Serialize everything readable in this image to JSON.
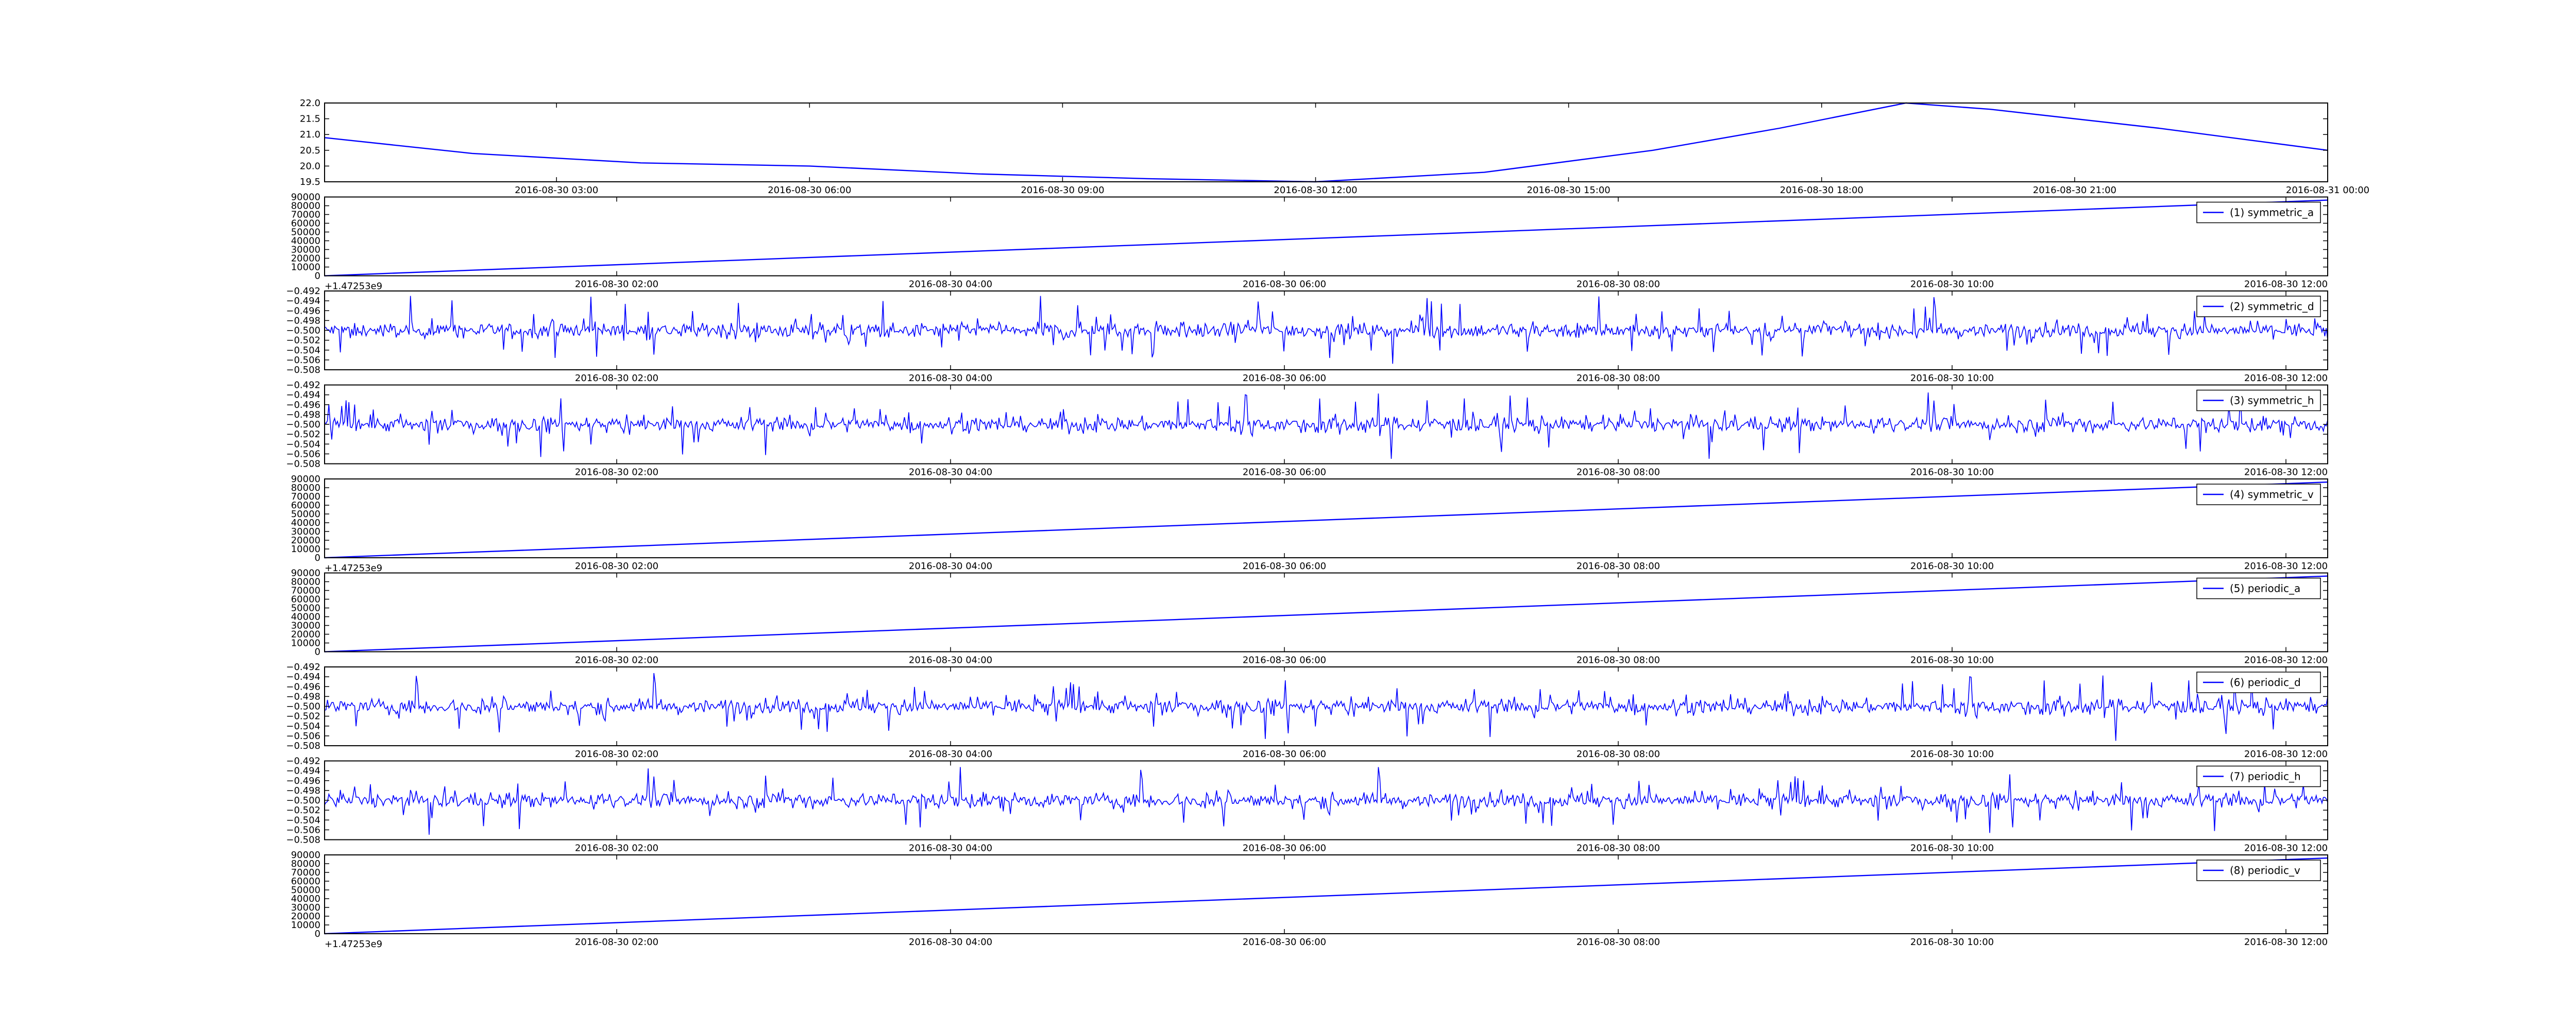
{
  "line_color": "#0000ff",
  "chart_data": [
    {
      "type": "line",
      "title": "",
      "xlabel": "",
      "ylabel": "",
      "legend": null,
      "grid": false,
      "x_ticks": [
        "2016-08-30 03:00",
        "2016-08-30 06:00",
        "2016-08-30 09:00",
        "2016-08-30 12:00",
        "2016-08-30 15:00",
        "2016-08-30 18:00",
        "2016-08-30 21:00",
        "2016-08-31 00:00"
      ],
      "xlim": [
        "2016-08-30 00:15",
        "2016-08-31 00:00"
      ],
      "y_ticks": [
        "19.5",
        "20.0",
        "20.5",
        "21.0",
        "21.5",
        "22.0"
      ],
      "ylim": [
        19.5,
        22.0
      ],
      "offset_text": "",
      "series": [
        {
          "x": [
            "2016-08-30 00:15",
            "2016-08-30 02:00",
            "2016-08-30 04:00",
            "2016-08-30 06:00",
            "2016-08-30 08:00",
            "2016-08-30 10:00",
            "2016-08-30 12:00",
            "2016-08-30 14:00",
            "2016-08-30 16:00",
            "2016-08-30 17:30",
            "2016-08-30 19:00",
            "2016-08-30 20:00",
            "2016-08-30 22:00",
            "2016-08-31 00:00"
          ],
          "values": [
            20.9,
            20.4,
            20.1,
            20.0,
            19.75,
            19.6,
            19.5,
            19.8,
            20.5,
            21.2,
            22.0,
            21.8,
            21.2,
            20.5
          ]
        }
      ]
    },
    {
      "type": "line",
      "x_ticks": [
        "2016-08-30 02:00",
        "2016-08-30 04:00",
        "2016-08-30 06:00",
        "2016-08-30 08:00",
        "2016-08-30 10:00",
        "2016-08-30 12:00"
      ],
      "xlim": [
        "2016-08-30 00:15",
        "2016-08-30 12:15"
      ],
      "y_ticks": [
        "0",
        "10000",
        "20000",
        "30000",
        "40000",
        "50000",
        "60000",
        "70000",
        "80000",
        "90000"
      ],
      "ylim": [
        0,
        90000
      ],
      "offset_text": "+1.47253e9",
      "legend": "(1) symmetric_a",
      "series": [
        {
          "name": "(1) symmetric_a",
          "x": [
            "2016-08-30 00:15",
            "2016-08-30 12:15"
          ],
          "values": [
            0,
            86400
          ]
        }
      ]
    },
    {
      "type": "line",
      "x_ticks": [
        "2016-08-30 02:00",
        "2016-08-30 04:00",
        "2016-08-30 06:00",
        "2016-08-30 08:00",
        "2016-08-30 10:00",
        "2016-08-30 12:00"
      ],
      "xlim": [
        "2016-08-30 00:15",
        "2016-08-30 12:15"
      ],
      "y_ticks": [
        "−0.508",
        "−0.506",
        "−0.504",
        "−0.502",
        "−0.500",
        "−0.498",
        "−0.496",
        "−0.494",
        "−0.492"
      ],
      "ylim": [
        -0.508,
        -0.492
      ],
      "offset_text": "",
      "legend": "(2) symmetric_d",
      "series": [
        {
          "name": "(2) symmetric_d",
          "mean": -0.5,
          "amplitude": 0.007,
          "samples": 1400
        }
      ]
    },
    {
      "type": "line",
      "x_ticks": [
        "2016-08-30 02:00",
        "2016-08-30 04:00",
        "2016-08-30 06:00",
        "2016-08-30 08:00",
        "2016-08-30 10:00",
        "2016-08-30 12:00"
      ],
      "xlim": [
        "2016-08-30 00:15",
        "2016-08-30 12:15"
      ],
      "y_ticks": [
        "−0.508",
        "−0.506",
        "−0.504",
        "−0.502",
        "−0.500",
        "−0.498",
        "−0.496",
        "−0.494",
        "−0.492"
      ],
      "ylim": [
        -0.508,
        -0.492
      ],
      "offset_text": "",
      "legend": "(3) symmetric_h",
      "series": [
        {
          "name": "(3) symmetric_h",
          "mean": -0.5,
          "amplitude": 0.007,
          "samples": 1400
        }
      ]
    },
    {
      "type": "line",
      "x_ticks": [
        "2016-08-30 02:00",
        "2016-08-30 04:00",
        "2016-08-30 06:00",
        "2016-08-30 08:00",
        "2016-08-30 10:00",
        "2016-08-30 12:00"
      ],
      "xlim": [
        "2016-08-30 00:15",
        "2016-08-30 12:15"
      ],
      "y_ticks": [
        "0",
        "10000",
        "20000",
        "30000",
        "40000",
        "50000",
        "60000",
        "70000",
        "80000",
        "90000"
      ],
      "ylim": [
        0,
        90000
      ],
      "offset_text": "+1.47253e9",
      "legend": "(4) symmetric_v",
      "series": [
        {
          "name": "(4) symmetric_v",
          "x": [
            "2016-08-30 00:15",
            "2016-08-30 12:15"
          ],
          "values": [
            0,
            86400
          ]
        }
      ]
    },
    {
      "type": "line",
      "x_ticks": [
        "2016-08-30 02:00",
        "2016-08-30 04:00",
        "2016-08-30 06:00",
        "2016-08-30 08:00",
        "2016-08-30 10:00",
        "2016-08-30 12:00"
      ],
      "xlim": [
        "2016-08-30 00:15",
        "2016-08-30 12:15"
      ],
      "y_ticks": [
        "0",
        "10000",
        "20000",
        "30000",
        "40000",
        "50000",
        "60000",
        "70000",
        "80000",
        "90000"
      ],
      "ylim": [
        0,
        90000
      ],
      "offset_text": "",
      "legend": "(5) periodic_a",
      "series": [
        {
          "name": "(5) periodic_a",
          "x": [
            "2016-08-30 00:15",
            "2016-08-30 12:15"
          ],
          "values": [
            0,
            86400
          ]
        }
      ]
    },
    {
      "type": "line",
      "x_ticks": [
        "2016-08-30 02:00",
        "2016-08-30 04:00",
        "2016-08-30 06:00",
        "2016-08-30 08:00",
        "2016-08-30 10:00",
        "2016-08-30 12:00"
      ],
      "xlim": [
        "2016-08-30 00:15",
        "2016-08-30 12:15"
      ],
      "y_ticks": [
        "−0.508",
        "−0.506",
        "−0.504",
        "−0.502",
        "−0.500",
        "−0.498",
        "−0.496",
        "−0.494",
        "−0.492"
      ],
      "ylim": [
        -0.508,
        -0.492
      ],
      "offset_text": "",
      "legend": "(6) periodic_d",
      "series": [
        {
          "name": "(6) periodic_d",
          "mean": -0.5,
          "amplitude": 0.007,
          "samples": 1400
        }
      ]
    },
    {
      "type": "line",
      "x_ticks": [
        "2016-08-30 02:00",
        "2016-08-30 04:00",
        "2016-08-30 06:00",
        "2016-08-30 08:00",
        "2016-08-30 10:00",
        "2016-08-30 12:00"
      ],
      "xlim": [
        "2016-08-30 00:15",
        "2016-08-30 12:15"
      ],
      "y_ticks": [
        "−0.508",
        "−0.506",
        "−0.504",
        "−0.502",
        "−0.500",
        "−0.498",
        "−0.496",
        "−0.494",
        "−0.492"
      ],
      "ylim": [
        -0.508,
        -0.492
      ],
      "offset_text": "",
      "legend": "(7) periodic_h",
      "series": [
        {
          "name": "(7) periodic_h",
          "mean": -0.5,
          "amplitude": 0.007,
          "samples": 1400
        }
      ]
    },
    {
      "type": "line",
      "x_ticks": [
        "2016-08-30 02:00",
        "2016-08-30 04:00",
        "2016-08-30 06:00",
        "2016-08-30 08:00",
        "2016-08-30 10:00",
        "2016-08-30 12:00"
      ],
      "xlim": [
        "2016-08-30 00:15",
        "2016-08-30 12:15"
      ],
      "y_ticks": [
        "0",
        "10000",
        "20000",
        "30000",
        "40000",
        "50000",
        "60000",
        "70000",
        "80000",
        "90000"
      ],
      "ylim": [
        0,
        90000
      ],
      "offset_text": "+1.47253e9",
      "legend": "(8) periodic_v",
      "series": [
        {
          "name": "(8) periodic_v",
          "x": [
            "2016-08-30 00:15",
            "2016-08-30 12:15"
          ],
          "values": [
            0,
            86400
          ]
        }
      ]
    }
  ]
}
